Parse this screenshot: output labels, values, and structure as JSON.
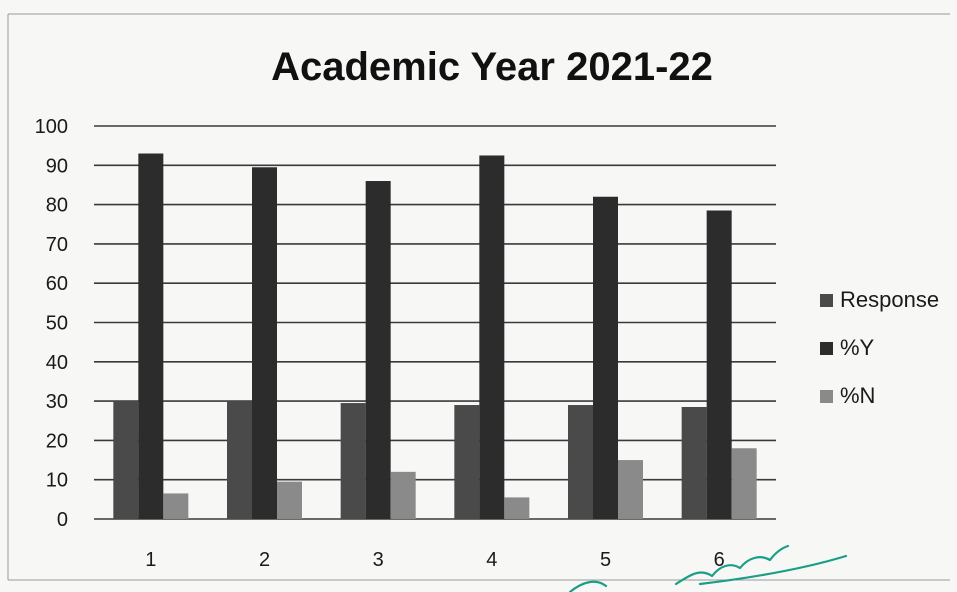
{
  "chart_data": {
    "type": "bar",
    "title": "Academic Year 2021-22",
    "xlabel": "",
    "ylabel": "",
    "categories": [
      "1",
      "2",
      "3",
      "4",
      "5",
      "6"
    ],
    "series": [
      {
        "name": "Response",
        "values": [
          30,
          30,
          29.5,
          29,
          29,
          28.5
        ]
      },
      {
        "name": "%Y",
        "values": [
          93,
          89.5,
          86,
          92.5,
          82,
          78.5
        ]
      },
      {
        "name": "%N",
        "values": [
          6.5,
          9.5,
          12,
          5.5,
          15,
          18
        ]
      }
    ],
    "ylim": [
      0,
      100
    ],
    "yticks": [
      "0",
      "10",
      "20",
      "30",
      "40",
      "50",
      "60",
      "70",
      "80",
      "90",
      "100"
    ],
    "grid": true,
    "legend_position": "right",
    "colors": [
      "#4a4a4a",
      "#2c2c2c",
      "#8a8a8a"
    ]
  }
}
